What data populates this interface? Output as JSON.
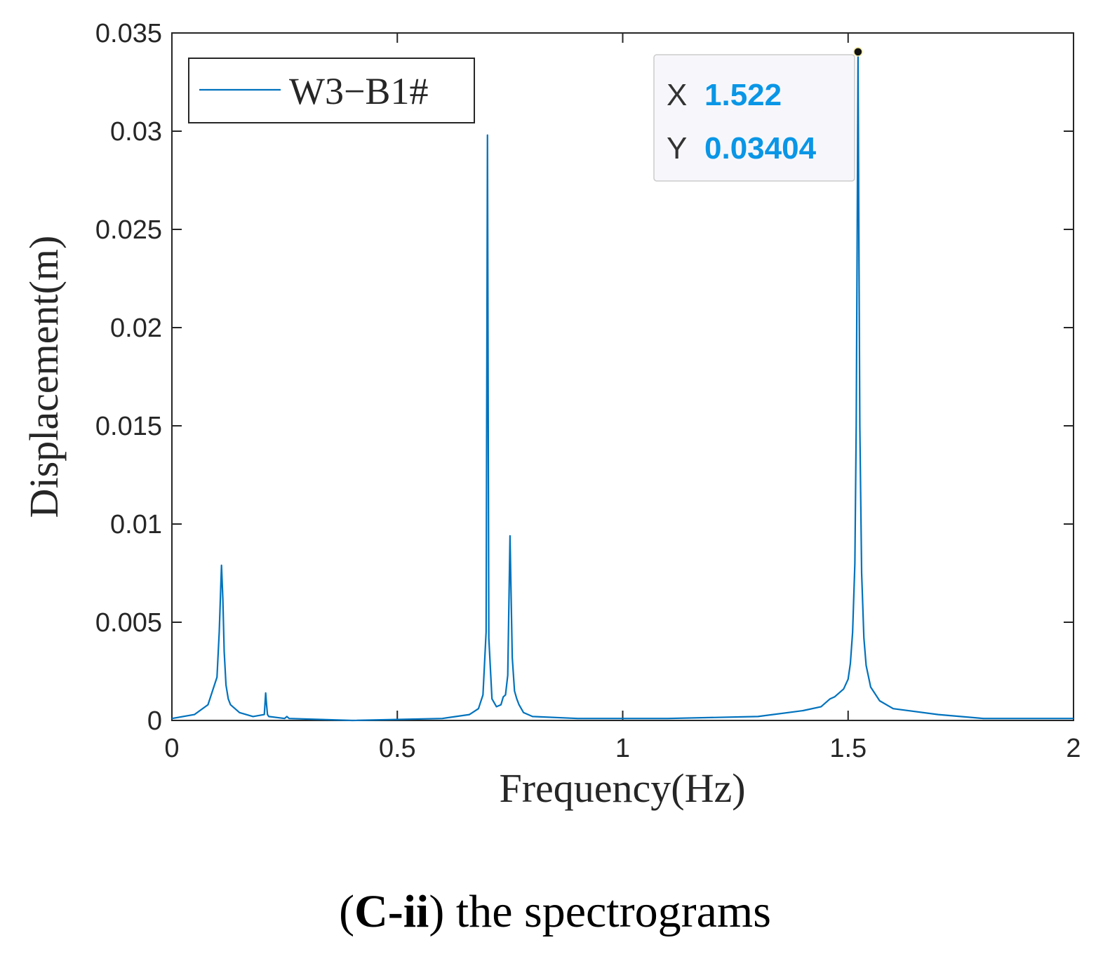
{
  "chart_data": {
    "type": "line",
    "xlabel": "Frequency(Hz)",
    "ylabel": "Displacement(m)",
    "xlim": [
      0,
      2
    ],
    "ylim": [
      0,
      0.035
    ],
    "x_ticks": [
      "0",
      "0.5",
      "1",
      "1.5",
      "2"
    ],
    "y_ticks": [
      "0",
      "0.005",
      "0.01",
      "0.015",
      "0.02",
      "0.025",
      "0.03",
      "0.035"
    ],
    "grid": false,
    "legend_position": "top-left",
    "series": [
      {
        "name": "W3−B1#",
        "color": "#0072bd",
        "x": [
          0,
          0.05,
          0.08,
          0.1,
          0.105,
          0.11,
          0.113,
          0.116,
          0.12,
          0.125,
          0.13,
          0.15,
          0.18,
          0.205,
          0.208,
          0.21,
          0.212,
          0.215,
          0.25,
          0.255,
          0.26,
          0.4,
          0.6,
          0.66,
          0.68,
          0.69,
          0.697,
          0.7,
          0.703,
          0.71,
          0.72,
          0.73,
          0.735,
          0.74,
          0.745,
          0.75,
          0.755,
          0.76,
          0.765,
          0.77,
          0.78,
          0.8,
          0.9,
          1.1,
          1.3,
          1.4,
          1.44,
          1.46,
          1.47,
          1.49,
          1.5,
          1.505,
          1.51,
          1.515,
          1.518,
          1.52,
          1.522,
          1.524,
          1.526,
          1.53,
          1.535,
          1.54,
          1.55,
          1.57,
          1.6,
          1.7,
          1.8,
          2.0
        ],
        "y": [
          0.0001,
          0.0003,
          0.0008,
          0.0022,
          0.0045,
          0.0079,
          0.0062,
          0.0035,
          0.0018,
          0.0011,
          0.0008,
          0.0004,
          0.0002,
          0.0003,
          0.0014,
          0.0008,
          0.0003,
          0.0002,
          0.0001,
          0.0002,
          0.0001,
          0.0,
          0.0001,
          0.0003,
          0.0006,
          0.0013,
          0.0045,
          0.0298,
          0.0042,
          0.0011,
          0.0007,
          0.0008,
          0.0012,
          0.0013,
          0.0023,
          0.0094,
          0.0032,
          0.0015,
          0.0011,
          0.0008,
          0.0004,
          0.0002,
          0.0001,
          0.0001,
          0.0002,
          0.0005,
          0.0007,
          0.0011,
          0.0012,
          0.0016,
          0.0021,
          0.0029,
          0.0045,
          0.008,
          0.015,
          0.024,
          0.03404,
          0.024,
          0.015,
          0.0075,
          0.0042,
          0.0028,
          0.0017,
          0.001,
          0.0006,
          0.0003,
          0.0001,
          0.0001
        ]
      }
    ],
    "datatip": {
      "x_key": "X",
      "x_value": "1.522",
      "y_key": "Y",
      "y_value": "0.03404",
      "point": [
        1.522,
        0.03404
      ]
    }
  },
  "caption": {
    "open": "(",
    "bold": "C-ii",
    "rest": ") the spectrograms"
  }
}
